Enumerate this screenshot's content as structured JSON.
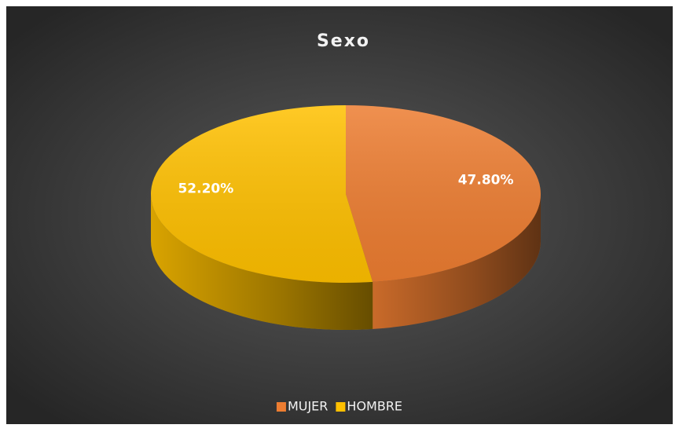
{
  "chart_data": {
    "type": "pie",
    "title": "Sexo",
    "categories": [
      "MUJER",
      "HOMBRE"
    ],
    "values": [
      47.8,
      52.2
    ],
    "value_labels": [
      "47.80%",
      "52.20%"
    ],
    "colors": [
      "#ed7d31",
      "#ffc000"
    ],
    "legend": "bottom"
  }
}
